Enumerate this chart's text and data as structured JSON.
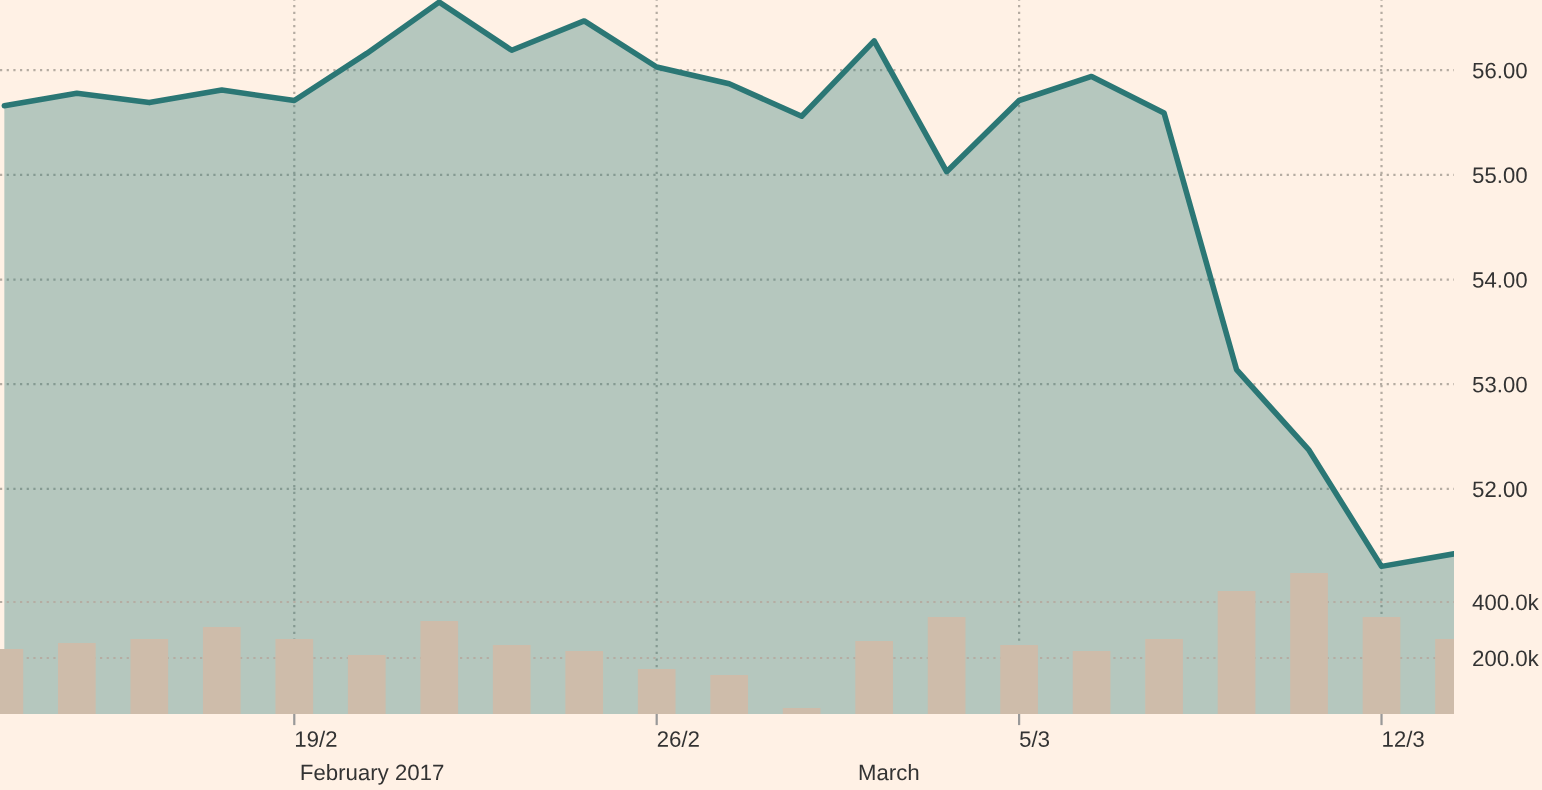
{
  "chart_data": {
    "type": "area",
    "categories": [
      null,
      null,
      null,
      null,
      "19/2",
      null,
      null,
      null,
      null,
      "26/2",
      null,
      null,
      null,
      null,
      "5/3",
      null,
      null,
      null,
      null,
      "12/3",
      null
    ],
    "series": [
      {
        "color": "#2b7775",
        "values": [
          55.66,
          55.78,
          55.69,
          55.81,
          55.71,
          56.16,
          56.65,
          56.19,
          56.47,
          56.03,
          55.87,
          55.56,
          56.28,
          55.03,
          55.71,
          55.94,
          55.59,
          53.14,
          52.37,
          51.26,
          51.38
        ]
      },
      {
        "type": "bar",
        "axis": "y2",
        "color": "#cebcaa",
        "values": [
          232000,
          254000,
          268000,
          311000,
          268000,
          211000,
          332000,
          246000,
          225000,
          161000,
          139000,
          21000,
          261000,
          346000,
          246000,
          225000,
          268000,
          439000,
          504000,
          346000,
          268000
        ]
      }
    ],
    "ylim": [
      49.85,
      56.67
    ],
    "yticks": [
      {
        "value": 52,
        "label": "52.00"
      },
      {
        "value": 53,
        "label": "53.00"
      },
      {
        "value": 54,
        "label": "54.00"
      },
      {
        "value": 55,
        "label": "55.00"
      },
      {
        "value": 56,
        "label": "56.00"
      }
    ],
    "y2lim": [
      0,
      2550000
    ],
    "y2ticks": [
      {
        "value": 200000,
        "label": "200.0k"
      },
      {
        "value": 400000,
        "label": "400.0k"
      }
    ],
    "grid": true,
    "annotations": [
      "February 2017",
      "March"
    ]
  }
}
